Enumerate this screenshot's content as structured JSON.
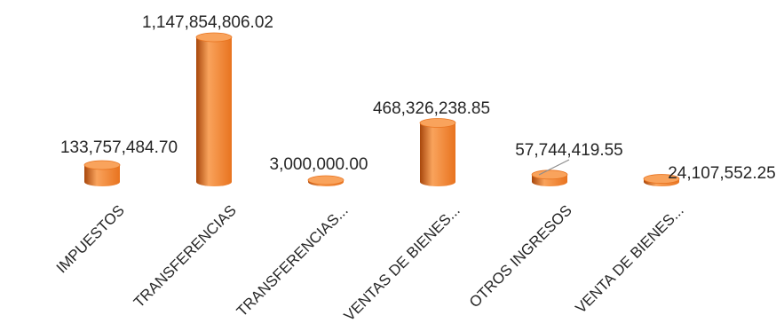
{
  "chart_data": {
    "type": "bar",
    "style": "3d-cylinder",
    "categories": [
      "IMPUESTOS",
      "TRANSFERENCIAS",
      "TRANSFERENCIAS...",
      "VENTAS DE BIENES...",
      "OTROS INGRESOS",
      "VENTA DE BIENES..."
    ],
    "values": [
      133757484.7,
      1147854806.02,
      3000000.0,
      468326238.85,
      57744419.55,
      24107552.25
    ],
    "data_labels": [
      "133,757,484.70",
      "1,147,854,806.02",
      "3,000,000.00",
      "468,326,238.85",
      "57,744,419.55",
      "24,107,552.25"
    ],
    "grid": false,
    "legend": "none",
    "colors": {
      "bar": "#e8731f",
      "bar_dark": "#a8470c",
      "bar_light": "#f9a35c",
      "leader_line": "#8c8c8c"
    }
  }
}
